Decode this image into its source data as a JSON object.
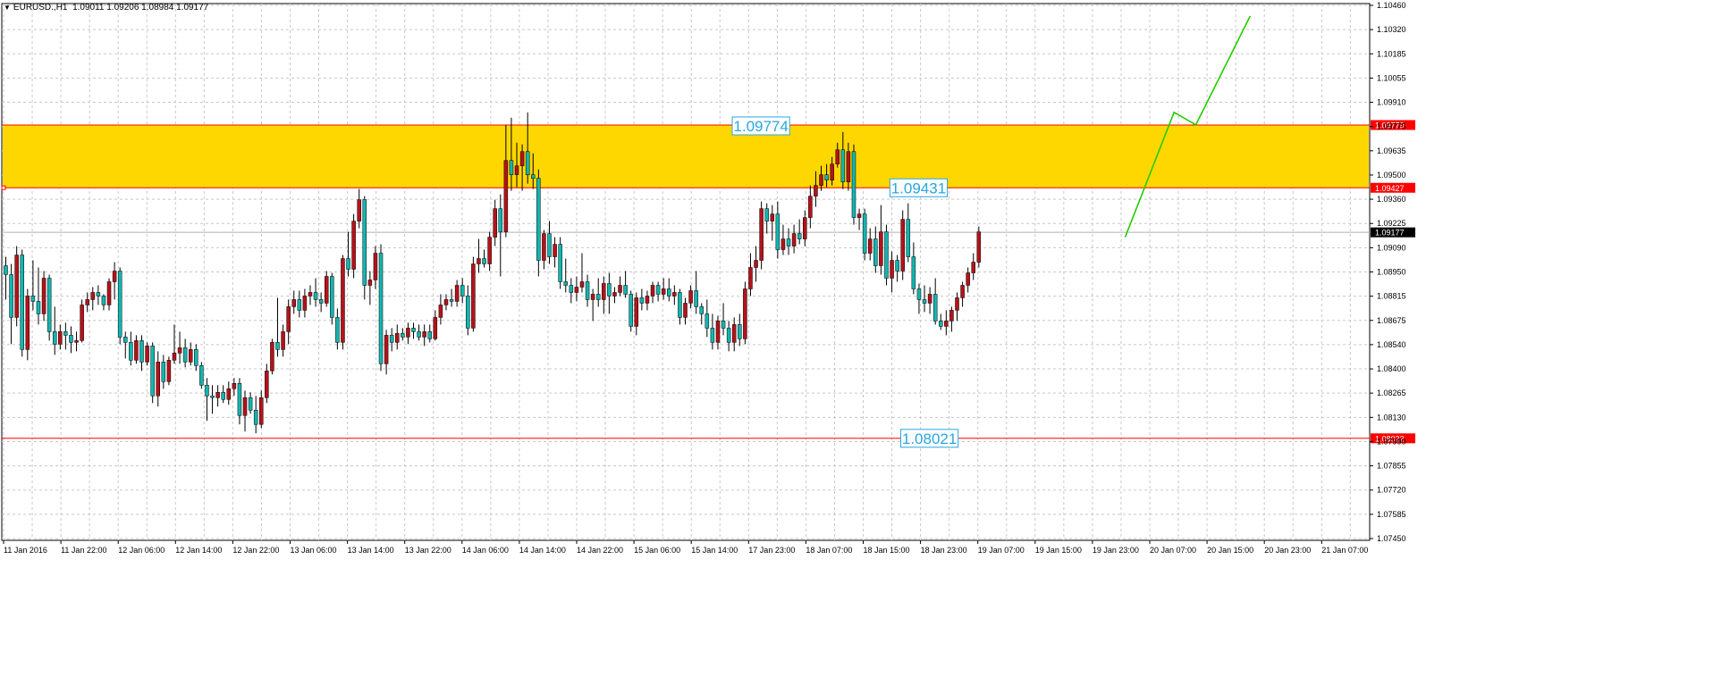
{
  "header": {
    "symbol": "EURUSD.,H1",
    "ohlc": "1.09011 1.09206 1.08984 1.09177"
  },
  "colors": {
    "background": "#ffffff",
    "grid": "#c8c8c8",
    "bull": "#b5121b",
    "bear": "#13b5b0",
    "wick": "#000000",
    "zone_fill": "#ffd700",
    "level_line": "#ff0000",
    "projection": "#22cc00",
    "label_text": "#29a6e0",
    "price_tag_red": "#ff0000",
    "price_tag_black": "#000000"
  },
  "chart_data": {
    "type": "candlestick",
    "y_axis_ticks": [
      "1.10460",
      "1.10320",
      "1.10185",
      "1.10055",
      "1.09910",
      "1.09775",
      "1.09635",
      "1.09500",
      "1.09360",
      "1.09225",
      "1.09090",
      "1.08950",
      "1.08815",
      "1.08675",
      "1.08540",
      "1.08400",
      "1.08265",
      "1.08130",
      "1.07990",
      "1.07855",
      "1.07720",
      "1.07585",
      "1.07450"
    ],
    "y_range": [
      1.0745,
      1.1046
    ],
    "x_axis_ticks": [
      "11 Jan 2016",
      "11 Jan 22:00",
      "12 Jan 06:00",
      "12 Jan 14:00",
      "12 Jan 22:00",
      "13 Jan 06:00",
      "13 Jan 14:00",
      "13 Jan 22:00",
      "14 Jan 06:00",
      "14 Jan 14:00",
      "14 Jan 22:00",
      "15 Jan 06:00",
      "15 Jan 14:00",
      "17 Jan 23:00",
      "18 Jan 07:00",
      "18 Jan 15:00",
      "18 Jan 23:00",
      "19 Jan 07:00",
      "19 Jan 15:00",
      "19 Jan 23:00",
      "20 Jan 07:00",
      "20 Jan 15:00",
      "20 Jan 23:00",
      "21 Jan 07:00"
    ],
    "resistance_zone": {
      "top": 1.09779,
      "bottom": 1.09427
    },
    "levels": [
      {
        "price": 1.09779,
        "tag": "1.09779"
      },
      {
        "price": 1.09427,
        "tag": "1.09427"
      },
      {
        "price": 1.08022,
        "tag": "1.08022"
      }
    ],
    "current_price": {
      "price": 1.09177,
      "tag": "1.09177"
    },
    "annotations": [
      {
        "text": "1.09774",
        "price": 1.09774,
        "bar": 139
      },
      {
        "text": "1.09431",
        "price": 1.09427,
        "bar": 168
      },
      {
        "text": "1.08021",
        "price": 1.08022,
        "bar": 170
      }
    ],
    "projection": [
      {
        "bar": 206,
        "price": 1.0915
      },
      {
        "bar": 215,
        "price": 1.0985
      },
      {
        "bar": 219,
        "price": 1.0978
      },
      {
        "bar": 229,
        "price": 1.1039
      }
    ],
    "candles": [
      [
        1.0899,
        1.0904,
        1.088,
        1.0894
      ],
      [
        1.0894,
        1.09,
        1.0855,
        1.087
      ],
      [
        1.087,
        1.091,
        1.0865,
        1.0905
      ],
      [
        1.0905,
        1.0908,
        1.0848,
        1.0852
      ],
      [
        1.0852,
        1.0886,
        1.0846,
        1.0882
      ],
      [
        1.0882,
        1.0902,
        1.0874,
        1.0879
      ],
      [
        1.0879,
        1.0898,
        1.0866,
        1.0872
      ],
      [
        1.0872,
        1.0896,
        1.0868,
        1.0892
      ],
      [
        1.0892,
        1.0894,
        1.0857,
        1.0862
      ],
      [
        1.0862,
        1.0876,
        1.0849,
        1.0855
      ],
      [
        1.0855,
        1.0866,
        1.0852,
        1.0862
      ],
      [
        1.0862,
        1.0867,
        1.0852,
        1.086
      ],
      [
        1.086,
        1.0865,
        1.085,
        1.0856
      ],
      [
        1.0856,
        1.0862,
        1.0851,
        1.0857
      ],
      [
        1.0857,
        1.088,
        1.0856,
        1.0877
      ],
      [
        1.0877,
        1.0884,
        1.0873,
        1.088
      ],
      [
        1.088,
        1.0887,
        1.0874,
        1.0884
      ],
      [
        1.0884,
        1.0888,
        1.0877,
        1.0882
      ],
      [
        1.0882,
        1.0883,
        1.0874,
        1.0877
      ],
      [
        1.0877,
        1.0892,
        1.0874,
        1.089
      ],
      [
        1.089,
        1.0901,
        1.088,
        1.0896
      ],
      [
        1.0896,
        1.0898,
        1.0855,
        1.0859
      ],
      [
        1.0859,
        1.0862,
        1.0847,
        1.0856
      ],
      [
        1.0856,
        1.0862,
        1.0843,
        1.0846
      ],
      [
        1.0846,
        1.086,
        1.0844,
        1.0857
      ],
      [
        1.0857,
        1.086,
        1.084,
        1.0845
      ],
      [
        1.0845,
        1.0856,
        1.0843,
        1.0854
      ],
      [
        1.0854,
        1.0856,
        1.0822,
        1.0826
      ],
      [
        1.0826,
        1.0851,
        1.082,
        1.0845
      ],
      [
        1.0845,
        1.0849,
        1.083,
        1.0834
      ],
      [
        1.0834,
        1.0848,
        1.0832,
        1.0846
      ],
      [
        1.0846,
        1.0866,
        1.0844,
        1.085
      ],
      [
        1.085,
        1.0862,
        1.0844,
        1.0853
      ],
      [
        1.0853,
        1.0858,
        1.0842,
        1.0845
      ],
      [
        1.0845,
        1.0856,
        1.0843,
        1.0852
      ],
      [
        1.0852,
        1.0855,
        1.084,
        1.0843
      ],
      [
        1.0843,
        1.0845,
        1.083,
        1.0832
      ],
      [
        1.0832,
        1.0836,
        1.0812,
        1.0826
      ],
      [
        1.0826,
        1.0832,
        1.0816,
        1.0825
      ],
      [
        1.0825,
        1.0832,
        1.082,
        1.0828
      ],
      [
        1.0828,
        1.0832,
        1.0822,
        1.0824
      ],
      [
        1.0824,
        1.0834,
        1.0821,
        1.083
      ],
      [
        1.083,
        1.0836,
        1.0826,
        1.0833
      ],
      [
        1.0833,
        1.0836,
        1.081,
        1.0815
      ],
      [
        1.0815,
        1.0829,
        1.0806,
        1.0825
      ],
      [
        1.0825,
        1.0828,
        1.0816,
        1.0818
      ],
      [
        1.0818,
        1.0826,
        1.0805,
        1.081
      ],
      [
        1.081,
        1.0829,
        1.0808,
        1.0825
      ],
      [
        1.0825,
        1.0844,
        1.0822,
        1.084
      ],
      [
        1.084,
        1.0858,
        1.0838,
        1.0856
      ],
      [
        1.0856,
        1.0881,
        1.0848,
        1.0852
      ],
      [
        1.0852,
        1.0866,
        1.0848,
        1.0862
      ],
      [
        1.0862,
        1.088,
        1.0855,
        1.0876
      ],
      [
        1.0876,
        1.0885,
        1.0872,
        1.088
      ],
      [
        1.088,
        1.0885,
        1.087,
        1.0874
      ],
      [
        1.0874,
        1.0886,
        1.087,
        1.0882
      ],
      [
        1.0882,
        1.0888,
        1.0877,
        1.0884
      ],
      [
        1.0884,
        1.0892,
        1.0876,
        1.088
      ],
      [
        1.088,
        1.0884,
        1.0873,
        1.0878
      ],
      [
        1.0878,
        1.0896,
        1.0876,
        1.0893
      ],
      [
        1.0893,
        1.0895,
        1.0866,
        1.087
      ],
      [
        1.087,
        1.0875,
        1.0852,
        1.0856
      ],
      [
        1.0856,
        1.0905,
        1.0852,
        1.0903
      ],
      [
        1.0903,
        1.0918,
        1.0893,
        1.0897
      ],
      [
        1.0897,
        1.0928,
        1.0892,
        1.0924
      ],
      [
        1.0924,
        1.0942,
        1.092,
        1.0936
      ],
      [
        1.0936,
        1.0938,
        1.088,
        1.0888
      ],
      [
        1.0888,
        1.0896,
        1.0877,
        1.0891
      ],
      [
        1.0891,
        1.091,
        1.0886,
        1.0906
      ],
      [
        1.0906,
        1.0911,
        1.084,
        1.0844
      ],
      [
        1.0844,
        1.0863,
        1.0838,
        1.086
      ],
      [
        1.086,
        1.0864,
        1.0851,
        1.0856
      ],
      [
        1.0856,
        1.0866,
        1.0852,
        1.0861
      ],
      [
        1.0861,
        1.0864,
        1.0857,
        1.0859
      ],
      [
        1.0859,
        1.0867,
        1.0855,
        1.0864
      ],
      [
        1.0864,
        1.0867,
        1.0858,
        1.0862
      ],
      [
        1.0862,
        1.0866,
        1.0857,
        1.0859
      ],
      [
        1.0859,
        1.0866,
        1.0854,
        1.0862
      ],
      [
        1.0862,
        1.0866,
        1.0856,
        1.0858
      ],
      [
        1.0858,
        1.0874,
        1.0857,
        1.087
      ],
      [
        1.087,
        1.0883,
        1.0866,
        1.0877
      ],
      [
        1.0877,
        1.0883,
        1.0874,
        1.088
      ],
      [
        1.088,
        1.0886,
        1.0876,
        1.0879
      ],
      [
        1.0879,
        1.0891,
        1.0876,
        1.0888
      ],
      [
        1.0888,
        1.0892,
        1.0878,
        1.0882
      ],
      [
        1.0882,
        1.0888,
        1.086,
        1.0864
      ],
      [
        1.0864,
        1.0904,
        1.0862,
        1.09
      ],
      [
        1.09,
        1.0914,
        1.0895,
        1.0903
      ],
      [
        1.0903,
        1.0908,
        1.0898,
        1.09
      ],
      [
        1.09,
        1.0918,
        1.0896,
        1.0915
      ],
      [
        1.0915,
        1.0936,
        1.091,
        1.0931
      ],
      [
        1.0931,
        1.0939,
        1.0893,
        1.0918
      ],
      [
        1.0918,
        1.0978,
        1.0915,
        1.0958
      ],
      [
        1.0958,
        1.0982,
        1.0941,
        1.095
      ],
      [
        1.095,
        1.0968,
        1.0943,
        1.0955
      ],
      [
        1.0955,
        1.0967,
        1.0941,
        1.0963
      ],
      [
        1.0963,
        1.0985,
        1.0945,
        1.095
      ],
      [
        1.095,
        1.0962,
        1.0942,
        1.0948
      ],
      [
        1.0948,
        1.0953,
        1.0893,
        1.0902
      ],
      [
        1.0902,
        1.0919,
        1.0897,
        1.0917
      ],
      [
        1.0917,
        1.0924,
        1.09,
        1.0904
      ],
      [
        1.0904,
        1.0915,
        1.0898,
        1.0911
      ],
      [
        1.0911,
        1.0915,
        1.0886,
        1.089
      ],
      [
        1.089,
        1.0903,
        1.0884,
        1.0888
      ],
      [
        1.0888,
        1.0892,
        1.0878,
        1.0884
      ],
      [
        1.0884,
        1.0893,
        1.0879,
        1.0887
      ],
      [
        1.0887,
        1.0906,
        1.0884,
        1.089
      ],
      [
        1.089,
        1.0894,
        1.0876,
        1.088
      ],
      [
        1.088,
        1.0886,
        1.0868,
        1.0883
      ],
      [
        1.0883,
        1.0892,
        1.0876,
        1.088
      ],
      [
        1.088,
        1.0893,
        1.0872,
        1.0889
      ],
      [
        1.0889,
        1.0895,
        1.0872,
        1.0882
      ],
      [
        1.0882,
        1.0887,
        1.0878,
        1.0884
      ],
      [
        1.0884,
        1.0893,
        1.0882,
        1.0888
      ],
      [
        1.0888,
        1.0896,
        1.0881,
        1.0883
      ],
      [
        1.0883,
        1.0885,
        1.0862,
        1.0865
      ],
      [
        1.0865,
        1.0884,
        1.086,
        1.0881
      ],
      [
        1.0881,
        1.0886,
        1.0874,
        1.0878
      ],
      [
        1.0878,
        1.0885,
        1.0874,
        1.0882
      ],
      [
        1.0882,
        1.089,
        1.0878,
        1.0888
      ],
      [
        1.0888,
        1.089,
        1.0879,
        1.0883
      ],
      [
        1.0883,
        1.0892,
        1.088,
        1.0886
      ],
      [
        1.0886,
        1.0892,
        1.0879,
        1.0882
      ],
      [
        1.0882,
        1.0888,
        1.0877,
        1.0884
      ],
      [
        1.0884,
        1.0886,
        1.0866,
        1.087
      ],
      [
        1.087,
        1.0881,
        1.0866,
        1.0878
      ],
      [
        1.0878,
        1.0888,
        1.0875,
        1.0885
      ],
      [
        1.0885,
        1.0896,
        1.0872,
        1.0876
      ],
      [
        1.0876,
        1.0878,
        1.0866,
        1.0872
      ],
      [
        1.0872,
        1.088,
        1.0859,
        1.0864
      ],
      [
        1.0864,
        1.0872,
        1.0852,
        1.0856
      ],
      [
        1.0856,
        1.0871,
        1.0852,
        1.0868
      ],
      [
        1.0868,
        1.0878,
        1.086,
        1.0864
      ],
      [
        1.0864,
        1.0868,
        1.0851,
        1.0856
      ],
      [
        1.0856,
        1.087,
        1.0851,
        1.0866
      ],
      [
        1.0866,
        1.0872,
        1.0854,
        1.0858
      ],
      [
        1.0858,
        1.089,
        1.0855,
        1.0886
      ],
      [
        1.0886,
        1.0906,
        1.0882,
        1.0898
      ],
      [
        1.0898,
        1.091,
        1.089,
        1.0902
      ],
      [
        1.0902,
        1.0935,
        1.0897,
        1.0931
      ],
      [
        1.0931,
        1.0934,
        1.0917,
        1.0924
      ],
      [
        1.0924,
        1.0933,
        1.0913,
        1.0928
      ],
      [
        1.0928,
        1.0935,
        1.0903,
        1.0908
      ],
      [
        1.0908,
        1.0922,
        1.0905,
        1.0914
      ],
      [
        1.0914,
        1.092,
        1.0905,
        1.091
      ],
      [
        1.091,
        1.0922,
        1.0906,
        1.0917
      ],
      [
        1.0917,
        1.0925,
        1.0911,
        1.0914
      ],
      [
        1.0914,
        1.093,
        1.091,
        1.0926
      ],
      [
        1.0926,
        1.0944,
        1.092,
        1.0938
      ],
      [
        1.0938,
        1.0952,
        1.0932,
        1.0944
      ],
      [
        1.0944,
        1.0955,
        1.0941,
        1.095
      ],
      [
        1.095,
        1.0956,
        1.0943,
        1.0947
      ],
      [
        1.0947,
        1.096,
        1.0944,
        1.0956
      ],
      [
        1.0956,
        1.0968,
        1.0954,
        1.0964
      ],
      [
        1.0964,
        1.0974,
        1.0942,
        1.0946
      ],
      [
        1.0946,
        1.0968,
        1.0941,
        1.0963
      ],
      [
        1.0963,
        1.0967,
        1.0922,
        1.0926
      ],
      [
        1.0926,
        1.0931,
        1.0919,
        1.0928
      ],
      [
        1.0928,
        1.0931,
        1.0902,
        1.0906
      ],
      [
        1.0906,
        1.092,
        1.0902,
        1.0914
      ],
      [
        1.0914,
        1.0921,
        1.0895,
        1.0899
      ],
      [
        1.0899,
        1.0933,
        1.0894,
        1.0918
      ],
      [
        1.0918,
        1.0922,
        1.0888,
        1.0892
      ],
      [
        1.0892,
        1.0907,
        1.0884,
        1.0902
      ],
      [
        1.0902,
        1.0905,
        1.089,
        1.0896
      ],
      [
        1.0896,
        1.093,
        1.0891,
        1.0925
      ],
      [
        1.0925,
        1.0934,
        1.0901,
        1.0904
      ],
      [
        1.0904,
        1.0912,
        1.0883,
        1.0886
      ],
      [
        1.0886,
        1.0889,
        1.0872,
        1.088
      ],
      [
        1.088,
        1.0888,
        1.0873,
        1.0878
      ],
      [
        1.0878,
        1.0887,
        1.0872,
        1.0883
      ],
      [
        1.0883,
        1.0892,
        1.0866,
        1.0868
      ],
      [
        1.0868,
        1.0872,
        1.0863,
        1.0865
      ],
      [
        1.0865,
        1.0874,
        1.086,
        1.0868
      ],
      [
        1.0868,
        1.0876,
        1.0862,
        1.0874
      ],
      [
        1.0874,
        1.0884,
        1.0868,
        1.0881
      ],
      [
        1.0881,
        1.089,
        1.0876,
        1.0888
      ],
      [
        1.0888,
        1.0898,
        1.0884,
        1.0895
      ],
      [
        1.0895,
        1.0906,
        1.0891,
        1.0901
      ],
      [
        1.0901,
        1.0921,
        1.0898,
        1.0918
      ]
    ]
  }
}
